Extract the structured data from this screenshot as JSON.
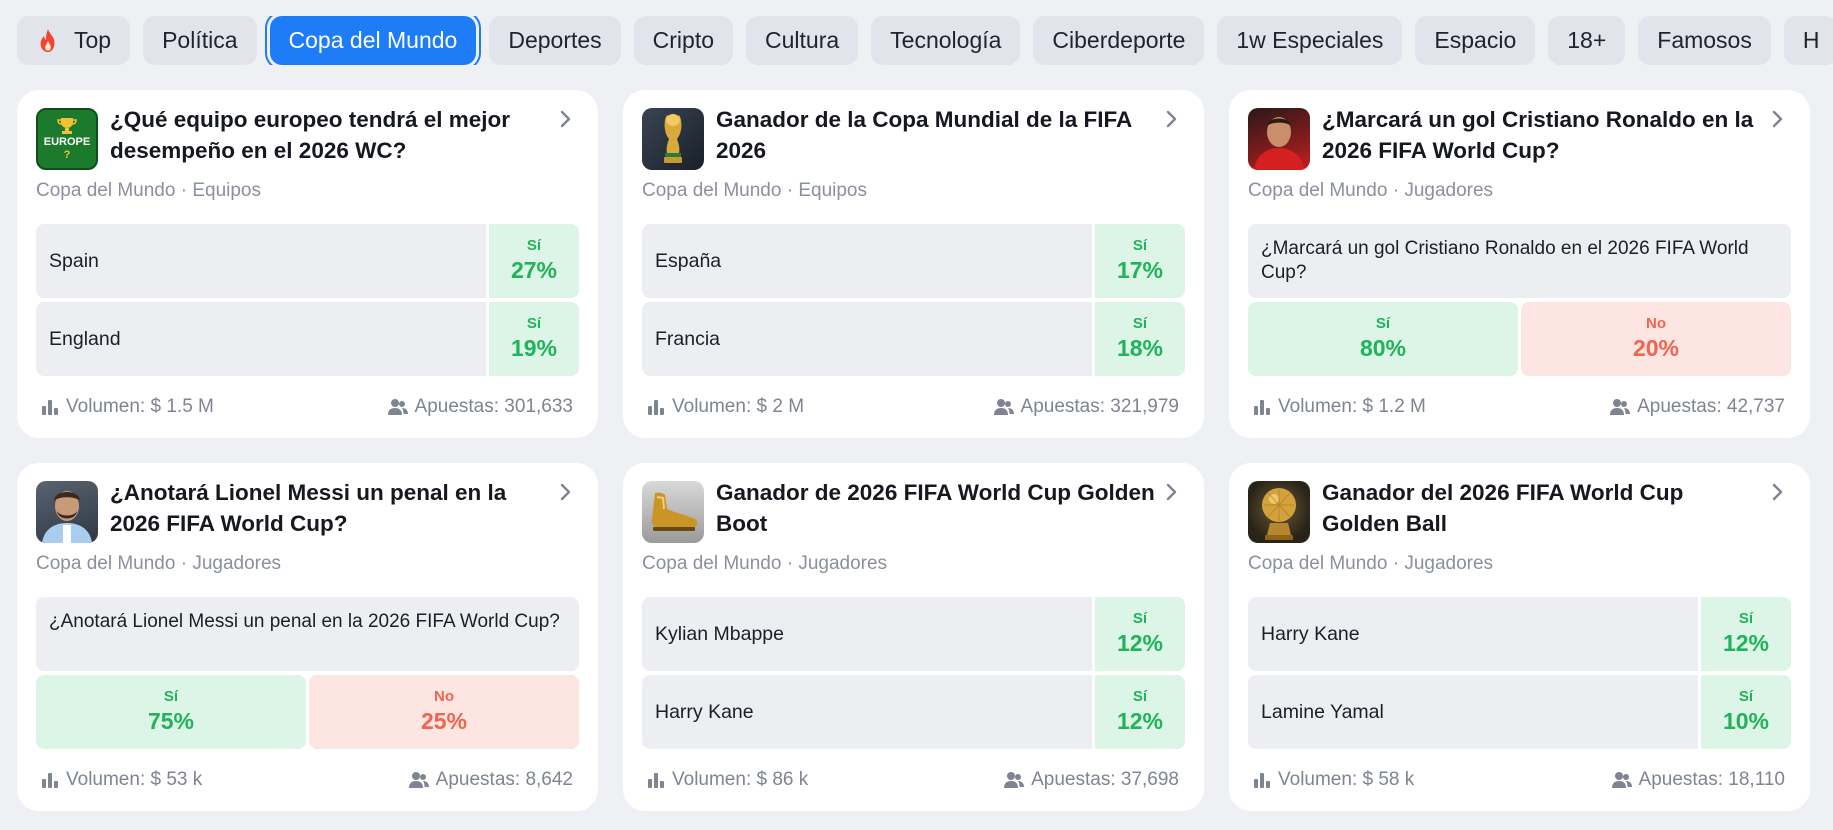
{
  "tabs": [
    {
      "label": "Top",
      "icon": "fire-icon"
    },
    {
      "label": "Política"
    },
    {
      "label": "Copa del Mundo",
      "active": true
    },
    {
      "label": "Deportes"
    },
    {
      "label": "Cripto"
    },
    {
      "label": "Cultura"
    },
    {
      "label": "Tecnología"
    },
    {
      "label": "Ciberdeporte"
    },
    {
      "label": "1w Especiales"
    },
    {
      "label": "Espacio"
    },
    {
      "label": "18+"
    },
    {
      "label": "Famosos"
    },
    {
      "label": "H"
    }
  ],
  "colors": {
    "accent": "#1f7cf7",
    "yes": "#20b35a",
    "no": "#f06450"
  },
  "cards": [
    {
      "title": "¿Qué equipo europeo tendrá el mejor desempeño en el 2026 WC?",
      "category": "Copa del Mundo",
      "subcategory": "Equipos",
      "thumb_text": "EUROPE",
      "thumb_text2": "?",
      "options": [
        {
          "name": "Spain",
          "label": "Sí",
          "value": "27%"
        },
        {
          "name": "England",
          "label": "Sí",
          "value": "19%"
        }
      ],
      "volume": "Volumen: $ 1.5 M",
      "bets": "Apuestas: 301,633"
    },
    {
      "title": "Ganador de la Copa Mundial de la FIFA 2026",
      "category": "Copa del Mundo",
      "subcategory": "Equipos",
      "options": [
        {
          "name": "España",
          "label": "Sí",
          "value": "17%"
        },
        {
          "name": "Francia",
          "label": "Sí",
          "value": "18%"
        }
      ],
      "volume": "Volumen: $ 2 M",
      "bets": "Apuestas: 321,979"
    },
    {
      "title": "¿Marcará un gol Cristiano Ronaldo en la 2026 FIFA World Cup?",
      "category": "Copa del Mundo",
      "subcategory": "Jugadores",
      "question": "¿Marcará un gol Cristiano Ronaldo en el 2026 FIFA World Cup?",
      "yes": {
        "label": "Sí",
        "value": "80%"
      },
      "no": {
        "label": "No",
        "value": "20%"
      },
      "volume": "Volumen: $ 1.2 M",
      "bets": "Apuestas: 42,737"
    },
    {
      "title": "¿Anotará Lionel Messi un penal en la 2026 FIFA World Cup?",
      "category": "Copa del Mundo",
      "subcategory": "Jugadores",
      "question": "¿Anotará Lionel Messi un penal en la 2026 FIFA World Cup?",
      "yes": {
        "label": "Sí",
        "value": "75%"
      },
      "no": {
        "label": "No",
        "value": "25%"
      },
      "volume": "Volumen: $ 53 k",
      "bets": "Apuestas: 8,642"
    },
    {
      "title": "Ganador de 2026 FIFA World Cup Golden Boot",
      "category": "Copa del Mundo",
      "subcategory": "Jugadores",
      "options": [
        {
          "name": "Kylian Mbappe",
          "label": "Sí",
          "value": "12%"
        },
        {
          "name": "Harry Kane",
          "label": "Sí",
          "value": "12%"
        }
      ],
      "volume": "Volumen: $ 86 k",
      "bets": "Apuestas: 37,698"
    },
    {
      "title": "Ganador del 2026 FIFA World Cup Golden Ball",
      "category": "Copa del Mundo",
      "subcategory": "Jugadores",
      "options": [
        {
          "name": "Harry Kane",
          "label": "Sí",
          "value": "12%"
        },
        {
          "name": "Lamine Yamal",
          "label": "Sí",
          "value": "10%"
        }
      ],
      "volume": "Volumen: $ 58 k",
      "bets": "Apuestas: 18,110"
    }
  ]
}
